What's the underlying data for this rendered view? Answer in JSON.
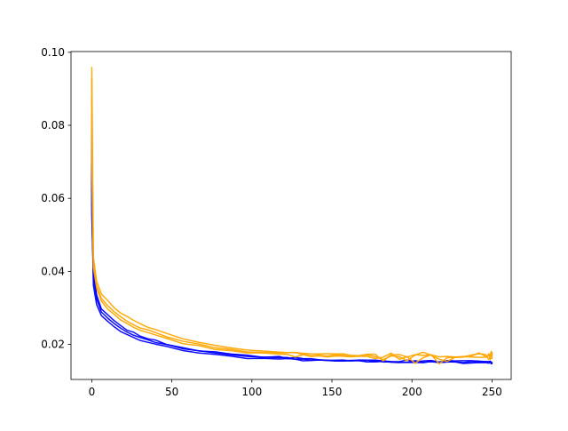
{
  "chart_data": {
    "type": "line",
    "title": "",
    "xlabel": "",
    "ylabel": "",
    "xlim": [
      -13,
      262
    ],
    "ylim": [
      0.0104,
      0.1002
    ],
    "xticks": [
      0,
      50,
      100,
      150,
      200,
      250
    ],
    "xtick_labels": [
      "0",
      "50",
      "100",
      "150",
      "200",
      "250"
    ],
    "yticks": [
      0.02,
      0.04,
      0.06,
      0.08,
      0.1
    ],
    "ytick_labels": [
      "0.02",
      "0.04",
      "0.06",
      "0.08",
      "0.10"
    ],
    "grid": false,
    "legend": null,
    "series": [
      {
        "color": "#0000ff",
        "values": [
          0.058,
          0.036,
          0.031,
          0.028,
          0.0262,
          0.0248,
          0.0236,
          0.0226,
          0.0218,
          0.0211,
          0.0205,
          0.02,
          0.0193,
          0.0184,
          0.0177,
          0.0172,
          0.0167,
          0.0163,
          0.0161,
          0.016,
          0.0159,
          0.0158,
          0.0157,
          0.0156,
          0.0155,
          0.0155,
          0.0154,
          0.0154,
          0.0153,
          0.0153,
          0.0153,
          0.0153,
          0.0152,
          0.0152,
          0.0152,
          0.0152,
          0.0151,
          0.0151,
          0.0151,
          0.0151,
          0.0151,
          0.015,
          0.015,
          0.015,
          0.015,
          0.015,
          0.015,
          0.015,
          0.0149,
          0.0149,
          0.0149,
          0.0149
        ],
        "peak": 0.079
      },
      {
        "color": "#0000ff",
        "values": [
          0.062,
          0.038,
          0.0325,
          0.029,
          0.0272,
          0.0258,
          0.0245,
          0.0234,
          0.0226,
          0.0219,
          0.0212,
          0.0206,
          0.0198,
          0.0188,
          0.0181,
          0.0176,
          0.0171,
          0.0167,
          0.0165,
          0.0163,
          0.0162,
          0.016,
          0.0159,
          0.0158,
          0.0157,
          0.0157,
          0.0156,
          0.0156,
          0.0155,
          0.0155,
          0.0154,
          0.0154,
          0.0154,
          0.0153,
          0.0153,
          0.0153,
          0.0153,
          0.0153,
          0.0152,
          0.0152,
          0.0152,
          0.0152,
          0.0152,
          0.0151,
          0.0151,
          0.0151,
          0.0151,
          0.0151,
          0.0151,
          0.015,
          0.015,
          0.015
        ],
        "peak": 0.083
      },
      {
        "color": "#0000ff",
        "values": [
          0.055,
          0.04,
          0.0335,
          0.0298,
          0.028,
          0.0265,
          0.0251,
          0.024,
          0.0232,
          0.0224,
          0.0216,
          0.021,
          0.0201,
          0.0191,
          0.0184,
          0.0178,
          0.0173,
          0.0169,
          0.0167,
          0.0165,
          0.0163,
          0.0162,
          0.0161,
          0.016,
          0.0159,
          0.0158,
          0.0158,
          0.0157,
          0.0157,
          0.0156,
          0.0156,
          0.0156,
          0.0155,
          0.0155,
          0.0155,
          0.0155,
          0.0154,
          0.0154,
          0.0154,
          0.0154,
          0.0154,
          0.0153,
          0.0153,
          0.0153,
          0.0153,
          0.0153,
          0.0153,
          0.0152,
          0.0152,
          0.0152,
          0.0152,
          0.0152
        ],
        "peak": 0.071
      },
      {
        "color": "#ffa500",
        "values": [
          0.096,
          0.042,
          0.036,
          0.0325,
          0.0305,
          0.029,
          0.0275,
          0.0264,
          0.0255,
          0.0246,
          0.0238,
          0.023,
          0.022,
          0.0207,
          0.0199,
          0.0192,
          0.0186,
          0.0181,
          0.0178,
          0.0176,
          0.0175,
          0.0174,
          0.0173,
          0.0172,
          0.0171,
          0.0171,
          0.017,
          0.017,
          0.0169,
          0.0169,
          0.0169,
          0.0168,
          0.0168,
          0.0168,
          0.0168,
          0.0168,
          0.0168,
          0.0168,
          0.0168,
          0.0168,
          0.0169,
          0.0169,
          0.0169,
          0.0169,
          0.017,
          0.017,
          0.017,
          0.017,
          0.0171,
          0.0171,
          0.0171,
          0.0171
        ],
        "peak": 0.096
      },
      {
        "color": "#ffa500",
        "values": [
          0.078,
          0.044,
          0.0375,
          0.034,
          0.032,
          0.0302,
          0.0287,
          0.0275,
          0.0265,
          0.0256,
          0.0247,
          0.0239,
          0.0228,
          0.0214,
          0.0205,
          0.0197,
          0.0191,
          0.0185,
          0.0182,
          0.0179,
          0.0177,
          0.0176,
          0.0174,
          0.0173,
          0.0172,
          0.0171,
          0.0171,
          0.017,
          0.017,
          0.0169,
          0.0169,
          0.0169,
          0.0168,
          0.0168,
          0.0168,
          0.0168,
          0.0168,
          0.0168,
          0.0168,
          0.0168,
          0.0168,
          0.0168,
          0.0168,
          0.0169,
          0.0169,
          0.0169,
          0.0169,
          0.017,
          0.017,
          0.017,
          0.017,
          0.017
        ],
        "peak": 0.093
      },
      {
        "color": "#ffa500",
        "values": [
          0.07,
          0.041,
          0.0355,
          0.032,
          0.0298,
          0.0282,
          0.0268,
          0.0257,
          0.0248,
          0.024,
          0.0232,
          0.0225,
          0.0215,
          0.0203,
          0.0195,
          0.0188,
          0.0182,
          0.0177,
          0.0174,
          0.0172,
          0.017,
          0.0169,
          0.0168,
          0.0167,
          0.0166,
          0.0166,
          0.0165,
          0.0165,
          0.0164,
          0.0164,
          0.0164,
          0.0164,
          0.0163,
          0.0163,
          0.0163,
          0.0163,
          0.0163,
          0.0163,
          0.0163,
          0.0163,
          0.0164,
          0.0164,
          0.0164,
          0.0164,
          0.0165,
          0.0165,
          0.0165,
          0.0165,
          0.0166,
          0.0166,
          0.0166,
          0.0166
        ],
        "peak": 0.088
      }
    ],
    "x": [
      0,
      1,
      3,
      6,
      10,
      14,
      18,
      22,
      26,
      30,
      35,
      40,
      47,
      57,
      67,
      77,
      87,
      97,
      107,
      117,
      122,
      127,
      132,
      137,
      142,
      147,
      152,
      157,
      162,
      167,
      172,
      177,
      182,
      187,
      192,
      197,
      202,
      207,
      212,
      217,
      222,
      227,
      232,
      237,
      242,
      246,
      247,
      248,
      249,
      249.5,
      250,
      250
    ]
  }
}
